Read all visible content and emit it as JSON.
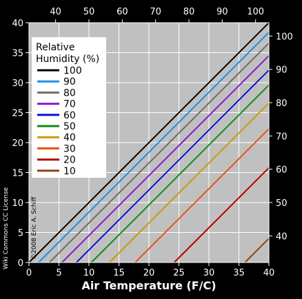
{
  "chart_data": {
    "type": "line",
    "xlabel": "Air Temperature (F/C)",
    "ylabel": "",
    "xlim": [
      0,
      40
    ],
    "ylim": [
      0,
      40
    ],
    "x_ticks": [
      0,
      5,
      10,
      15,
      20,
      25,
      30,
      35,
      40
    ],
    "y_ticks": [
      0,
      5,
      10,
      15,
      20,
      25,
      30,
      35,
      40
    ],
    "top_ticks": [
      {
        "label": "40",
        "x": 4.44
      },
      {
        "label": "50",
        "x": 10.0
      },
      {
        "label": "60",
        "x": 15.56
      },
      {
        "label": "70",
        "x": 21.11
      },
      {
        "label": "80",
        "x": 26.67
      },
      {
        "label": "90",
        "x": 32.22
      },
      {
        "label": "100",
        "x": 37.78
      }
    ],
    "right_ticks": [
      {
        "label": "40",
        "y": 4.44
      },
      {
        "label": "50",
        "y": 10.0
      },
      {
        "label": "60",
        "y": 15.56
      },
      {
        "label": "70",
        "y": 21.11
      },
      {
        "label": "80",
        "y": 26.67
      },
      {
        "label": "90",
        "y": 32.22
      },
      {
        "label": "100",
        "y": 37.78
      }
    ],
    "legend": {
      "title_line1": "Relative",
      "title_line2": "Humidity (%)",
      "position": "top-left"
    },
    "grid": true,
    "series": [
      {
        "name": "100",
        "color": "#000000",
        "x": [
          0,
          40
        ],
        "y": [
          0,
          40
        ]
      },
      {
        "name": "90",
        "color": "#1e90e6",
        "x": [
          1.6,
          40
        ],
        "y": [
          0,
          38.4
        ]
      },
      {
        "name": "80",
        "color": "#6e6e6e",
        "x": [
          3.4,
          40
        ],
        "y": [
          0,
          36.6
        ]
      },
      {
        "name": "70",
        "color": "#8a18c8",
        "x": [
          5.5,
          40
        ],
        "y": [
          0,
          34.5
        ]
      },
      {
        "name": "60",
        "color": "#0f0fd2",
        "x": [
          7.9,
          40
        ],
        "y": [
          0,
          32.1
        ]
      },
      {
        "name": "50",
        "color": "#0f8c0f",
        "x": [
          10.4,
          40
        ],
        "y": [
          0,
          29.6
        ]
      },
      {
        "name": "40",
        "color": "#cc9900",
        "x": [
          13.4,
          40
        ],
        "y": [
          0,
          26.6
        ]
      },
      {
        "name": "30",
        "color": "#ee4e10",
        "x": [
          17.7,
          40
        ],
        "y": [
          0,
          22.3
        ]
      },
      {
        "name": "20",
        "color": "#b00000",
        "x": [
          24.2,
          40
        ],
        "y": [
          0,
          15.8
        ]
      },
      {
        "name": "10",
        "color": "#8b4513",
        "x": [
          36.0,
          40
        ],
        "y": [
          0,
          4.0
        ]
      }
    ],
    "credits": {
      "left": "Wiki Commons CC License",
      "inner": "©2008 Eric A. Schiff"
    }
  }
}
